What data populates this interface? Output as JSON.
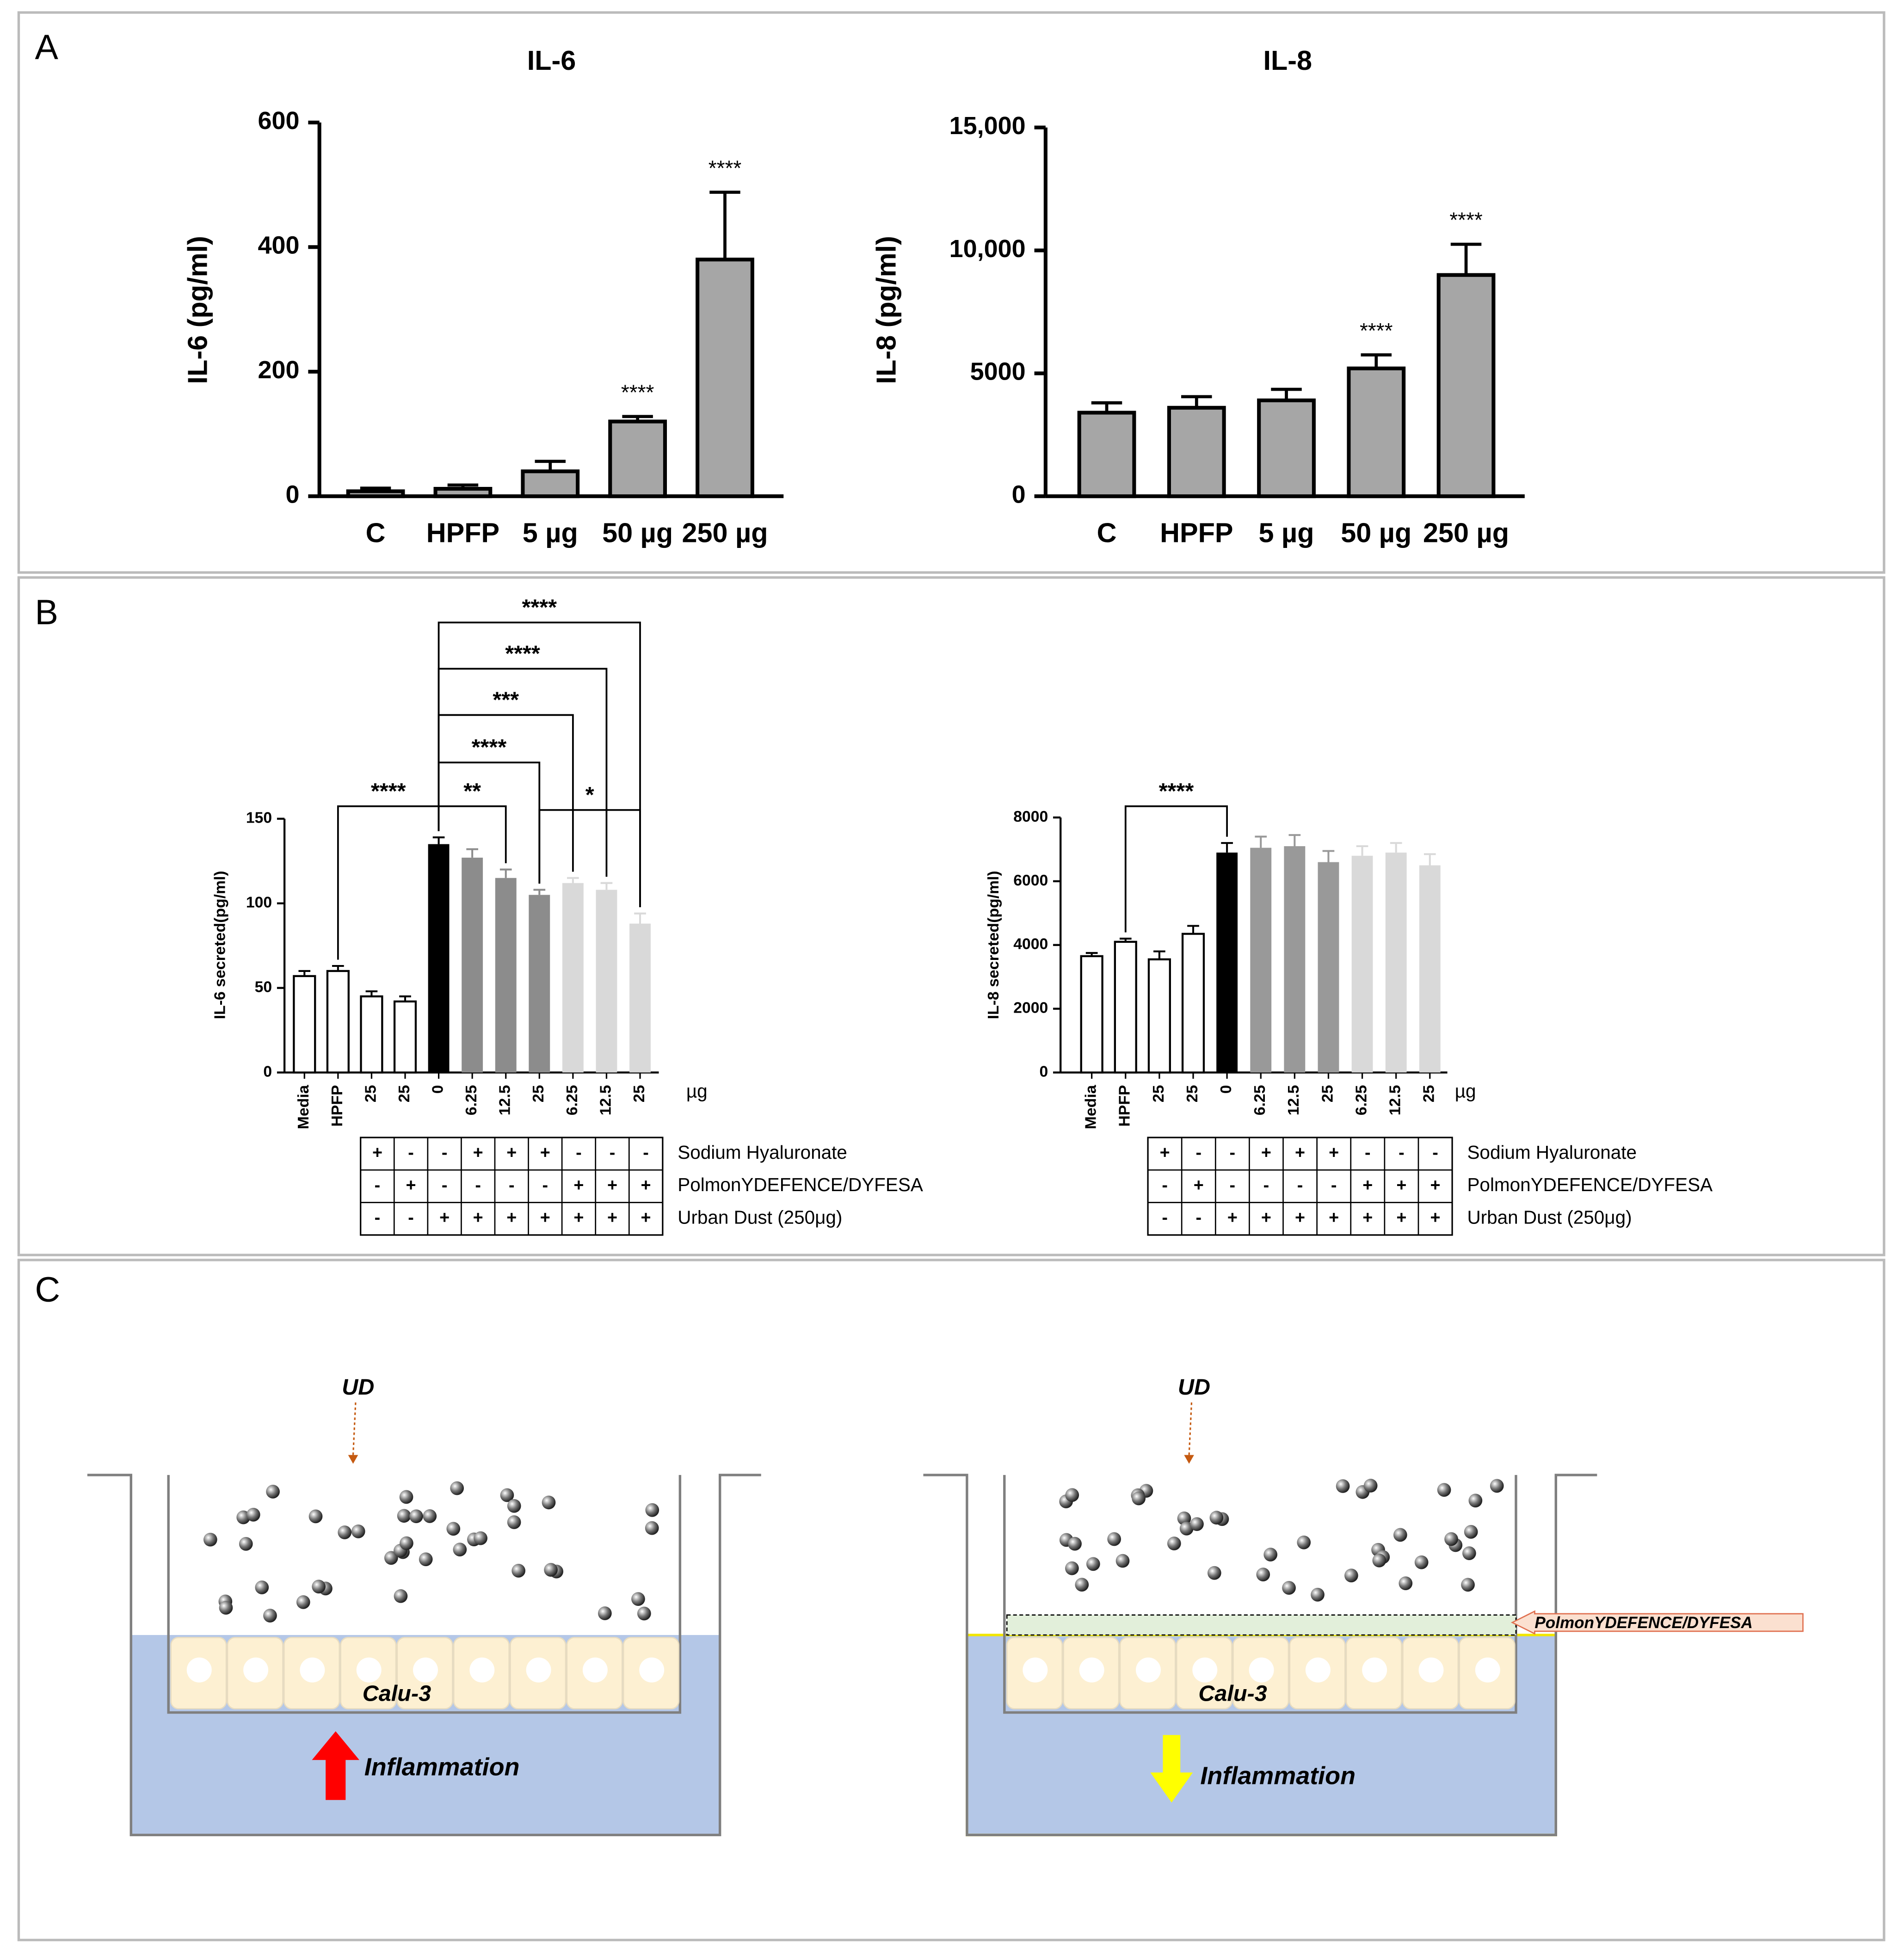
{
  "panels": [
    "A",
    "B",
    "C"
  ],
  "chart_data": [
    {
      "type": "bar",
      "title": "IL-6",
      "ylabel": "IL-6 (pg/ml)",
      "categories": [
        "C",
        "HPFP",
        "5 µg",
        "50 µg",
        "250 µg"
      ],
      "values": [
        8,
        12,
        40,
        120,
        380
      ],
      "errors": [
        5,
        6,
        16,
        8,
        108
      ],
      "annotations": [
        null,
        null,
        null,
        "****",
        "****"
      ],
      "color": "#a6a6a6",
      "ylim": [
        0,
        600
      ],
      "yticks": [
        0,
        200,
        400,
        600
      ]
    },
    {
      "type": "bar",
      "title": "IL-8",
      "ylabel": "IL-8 (pg/ml)",
      "categories": [
        "C",
        "HPFP",
        "5 µg",
        "50 µg",
        "250 µg"
      ],
      "values": [
        3400,
        3600,
        3900,
        5200,
        9000
      ],
      "errors": [
        400,
        450,
        450,
        550,
        1250
      ],
      "annotations": [
        null,
        null,
        null,
        "****",
        "****"
      ],
      "color": "#a6a6a6",
      "ylim": [
        0,
        15000
      ],
      "yticks": [
        0,
        5000,
        {
          "value": 10000,
          "label": "10,000"
        },
        {
          "value": 15000,
          "label": "15,000"
        }
      ]
    },
    {
      "type": "bar",
      "ylabel": "IL-6 secreted(pg/ml)",
      "unit": "µg",
      "categories": [
        "Media",
        "HPFP",
        "25",
        "25",
        "0",
        "6.25",
        "12.5",
        "25",
        "6.25",
        "12.5",
        "25"
      ],
      "values": [
        57,
        60,
        45,
        42,
        135,
        127,
        115,
        105,
        112,
        108,
        88
      ],
      "errors": [
        3,
        3,
        3,
        3,
        4,
        5,
        5,
        3,
        3,
        4,
        6
      ],
      "colors": [
        "#ffffff",
        "#ffffff",
        "#ffffff",
        "#ffffff",
        "#000000",
        "#8c8c8c",
        "#8c8c8c",
        "#8c8c8c",
        "#d9d9d9",
        "#d9d9d9",
        "#d9d9d9"
      ],
      "ylim": [
        0,
        150
      ],
      "yticks": [
        0,
        50,
        100,
        150
      ],
      "comparisons": [
        "****",
        "**",
        "****",
        "***",
        "****",
        "****",
        "*"
      ],
      "table": {
        "rows": [
          {
            "label": "Sodium Hyaluronate",
            "cells": [
              "+",
              "-",
              "-",
              "+",
              "+",
              "+",
              "-",
              "-",
              "-"
            ]
          },
          {
            "label": "PolmonYDEFENCE/DYFESA",
            "cells": [
              "-",
              "+",
              "-",
              "-",
              "-",
              "-",
              "+",
              "+",
              "+"
            ]
          },
          {
            "label": "Urban Dust (250μg)",
            "cells": [
              "-",
              "-",
              "+",
              "+",
              "+",
              "+",
              "+",
              "+",
              "+"
            ]
          }
        ]
      }
    },
    {
      "type": "bar",
      "ylabel": "IL-8 secreted(pg/ml)",
      "unit": "µg",
      "categories": [
        "Media",
        "HPFP",
        "25",
        "25",
        "0",
        "6.25",
        "12.5",
        "25",
        "6.25",
        "12.5",
        "25"
      ],
      "values": [
        3650,
        4100,
        3550,
        4350,
        6900,
        7050,
        7100,
        6600,
        6800,
        6900,
        6500
      ],
      "errors": [
        100,
        100,
        250,
        250,
        300,
        350,
        350,
        350,
        300,
        300,
        350
      ],
      "colors": [
        "#ffffff",
        "#ffffff",
        "#ffffff",
        "#ffffff",
        "#000000",
        "#999999",
        "#999999",
        "#999999",
        "#d9d9d9",
        "#d9d9d9",
        "#d9d9d9"
      ],
      "ylim": [
        0,
        8000
      ],
      "yticks": [
        0,
        2000,
        4000,
        6000,
        8000
      ],
      "comparisons": [
        "****"
      ],
      "table": {
        "rows": [
          {
            "label": "Sodium Hyaluronate",
            "cells": [
              "+",
              "-",
              "-",
              "+",
              "+",
              "+",
              "-",
              "-",
              "-"
            ]
          },
          {
            "label": "PolmonYDEFENCE/DYFESA",
            "cells": [
              "-",
              "+",
              "-",
              "-",
              "-",
              "-",
              "+",
              "+",
              "+"
            ]
          },
          {
            "label": "Urban Dust (250μg)",
            "cells": [
              "-",
              "-",
              "+",
              "+",
              "+",
              "+",
              "+",
              "+",
              "+"
            ]
          }
        ]
      }
    }
  ],
  "diagram": {
    "left": {
      "ud": "UD",
      "cells": "Calu-3",
      "effect": "Inflammation"
    },
    "right": {
      "ud": "UD",
      "cells": "Calu-3",
      "effect": "Inflammation",
      "barrier": "PolmonYDEFENCE/DYFESA"
    }
  }
}
